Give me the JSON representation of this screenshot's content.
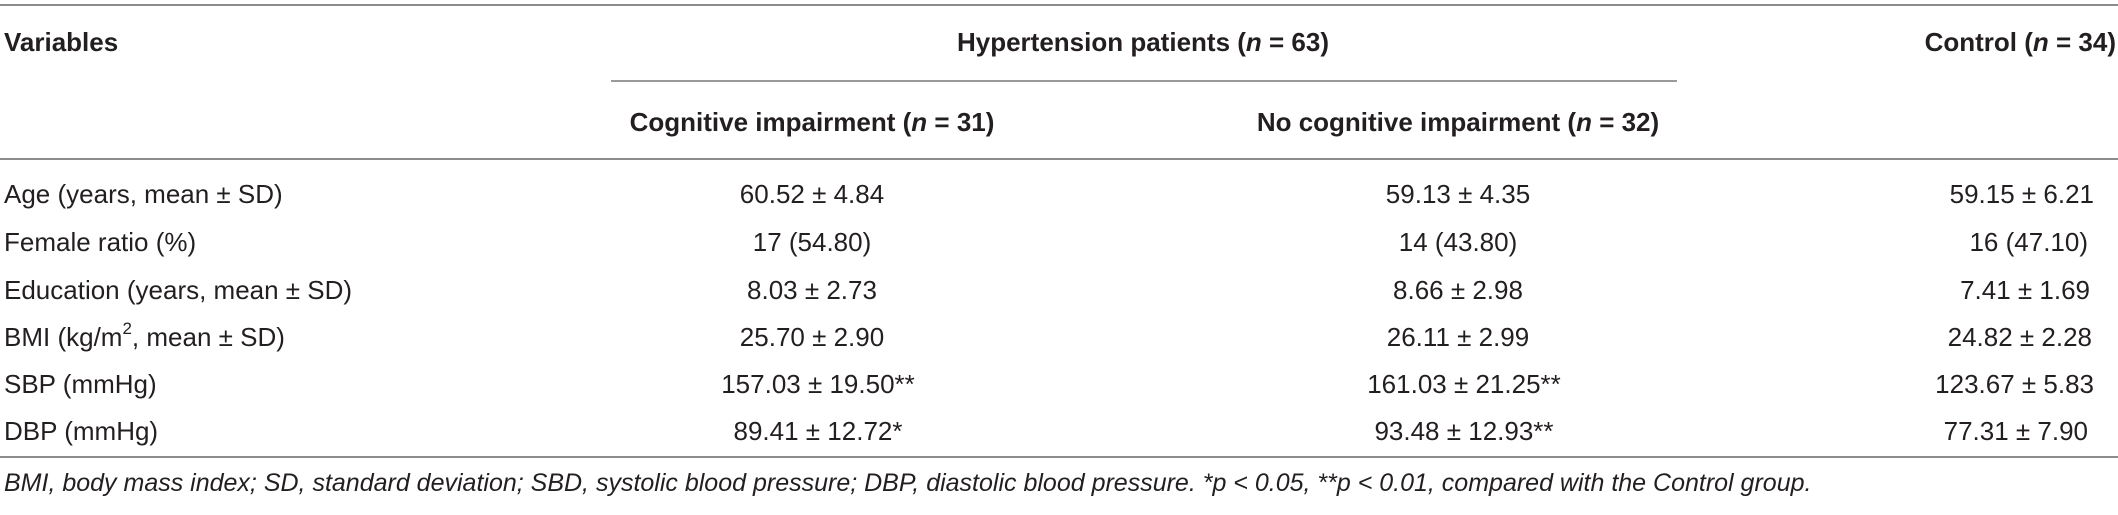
{
  "header": {
    "variables": "Variables",
    "group_hyp_prefix": "Hypertension patients (",
    "group_hyp_n": "n",
    "group_hyp_suffix": " = 63)",
    "group_ctrl_prefix": "Control (",
    "group_ctrl_n": "n",
    "group_ctrl_suffix": " = 34)",
    "sub1_prefix": "Cognitive impairment (",
    "sub1_n": "n",
    "sub1_suffix": " = 31)",
    "sub2_prefix": "No cognitive impairment (",
    "sub2_n": "n",
    "sub2_suffix": " = 32)"
  },
  "rows": [
    {
      "label": "Age (years, mean ± SD)",
      "ci": "60.52 ± 4.84",
      "nci": "59.13 ± 4.35",
      "ctrl": "59.15 ± 6.21"
    },
    {
      "label": "Female ratio (%)",
      "ci": "17 (54.80)",
      "nci": "14 (43.80)",
      "ctrl": "16 (47.10)"
    },
    {
      "label": "Education (years, mean ± SD)",
      "ci": "8.03 ± 2.73",
      "nci": "8.66 ± 2.98",
      "ctrl": "7.41 ± 1.69"
    },
    {
      "label_prefix": "BMI (kg/m",
      "label_sup": "2",
      "label_suffix": ", mean ± SD)",
      "ci": "25.70 ± 2.90",
      "nci": "26.11 ± 2.99",
      "ctrl": "24.82 ± 2.28"
    },
    {
      "label": "SBP (mmHg)",
      "ci": "157.03 ± 19.50**",
      "nci": "161.03 ± 21.25**",
      "ctrl": "123.67 ± 5.83"
    },
    {
      "label": "DBP (mmHg)",
      "ci": "89.41 ± 12.72*",
      "nci": "93.48 ± 12.93**",
      "ctrl": "77.31 ± 7.90"
    }
  ],
  "footnote": "BMI, body mass index; SD, standard deviation; SBD, systolic blood pressure; DBP, diastolic blood pressure. *p < 0.05, **p < 0.01, compared with the Control group."
}
